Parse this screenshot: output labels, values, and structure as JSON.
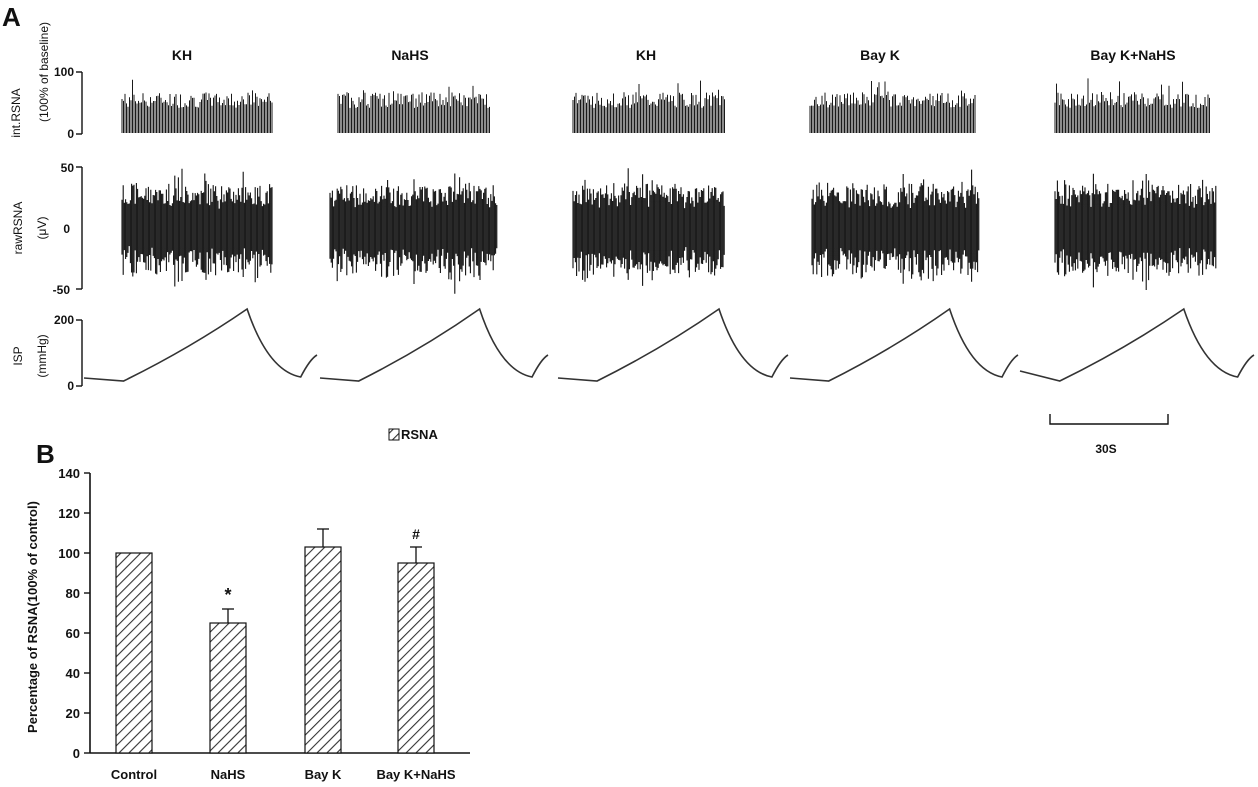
{
  "panel_a": {
    "label": "A",
    "conditions": [
      "KH",
      "NaHS",
      "KH",
      "Bay K",
      "Bay K+NaHS"
    ],
    "int_rsna": {
      "ylabel_line1": "int.RSNA",
      "ylabel_line2": "(100% of baseline)",
      "ticks": [
        "100",
        "0"
      ],
      "ylim": [
        0,
        100
      ]
    },
    "raw_rsna": {
      "ylabel_line1": "rawRSNA",
      "ylabel_line2": "(μV)",
      "ticks": [
        "50",
        "0",
        "-50"
      ],
      "ylim": [
        -50,
        50
      ]
    },
    "isp": {
      "ylabel_line1": "ISP",
      "ylabel_line2": "(mmHg)",
      "ticks": [
        "200",
        "0"
      ],
      "ylim": [
        0,
        200
      ]
    },
    "scale_bar_label": "30S"
  },
  "panel_b": {
    "label": "B",
    "legend_label": "RSNA"
  },
  "colors": {
    "ink": "#111111",
    "trace": "#1a1a1a",
    "hatch": "#333333"
  },
  "chart_data": [
    {
      "type": "bar",
      "categories": [
        "Control",
        "NaHS",
        "Bay K",
        "Bay K+NaHS"
      ],
      "series": [
        {
          "name": "RSNA",
          "values": [
            100,
            65,
            103,
            95
          ],
          "errors": [
            0,
            7,
            9,
            8
          ]
        }
      ],
      "annotations": [
        "",
        "*",
        "",
        "#"
      ],
      "xlabel": "",
      "ylabel": "Percentage of RSNA(100% of control)",
      "ylim": [
        0,
        140
      ],
      "yticks": [
        0,
        20,
        40,
        60,
        80,
        100,
        120,
        140
      ],
      "legend_position": "top"
    }
  ]
}
